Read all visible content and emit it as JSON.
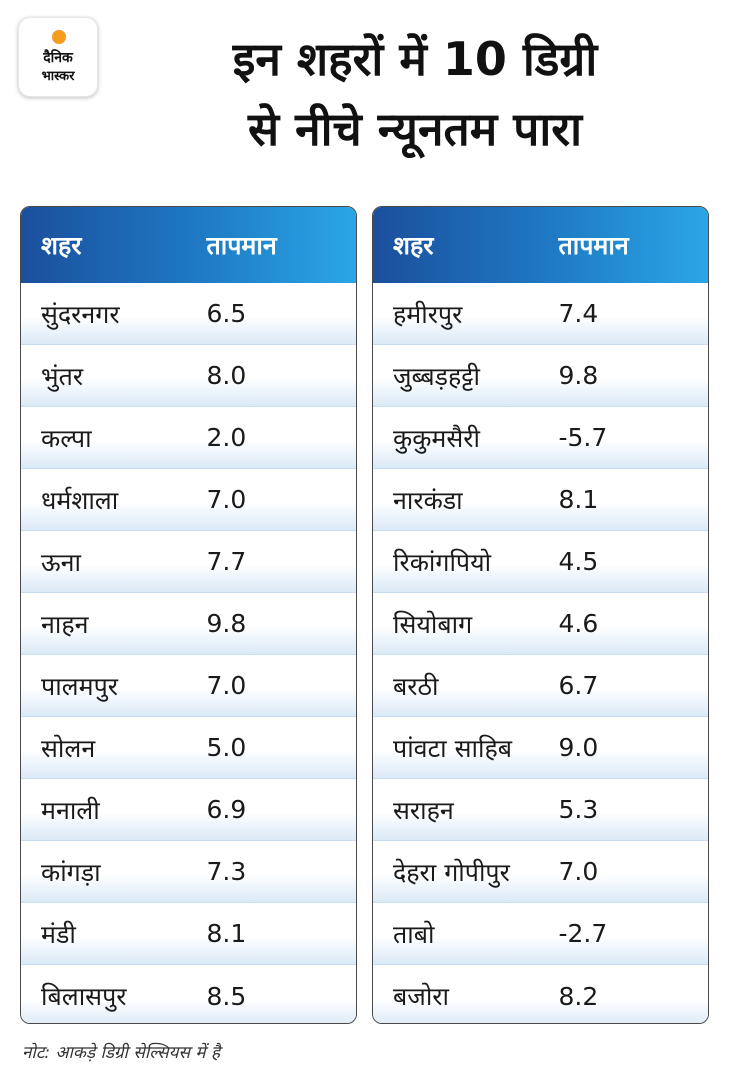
{
  "logo": {
    "line1": "दैनिक",
    "line2": "भास्कर"
  },
  "title": {
    "line1": "इन शहरों में 10 डिग्री",
    "line2": "से नीचे न्यूनतम पारा"
  },
  "colors": {
    "header_start": "#1b4f9c",
    "header_end": "#2aa6e6",
    "row_tint": "#dbe9f7",
    "logo_sun": "#f39c1e"
  },
  "tables": [
    {
      "headers": {
        "city": "शहर",
        "temp": "तापमान"
      },
      "rows": [
        {
          "city": "सुंदरनगर",
          "temp": "6.5"
        },
        {
          "city": "भुंतर",
          "temp": "8.0"
        },
        {
          "city": "कल्पा",
          "temp": "2.0"
        },
        {
          "city": "धर्मशाला",
          "temp": "7.0"
        },
        {
          "city": "ऊना",
          "temp": "7.7"
        },
        {
          "city": "नाहन",
          "temp": "9.8"
        },
        {
          "city": "पालमपुर",
          "temp": "7.0"
        },
        {
          "city": "सोलन",
          "temp": "5.0"
        },
        {
          "city": "मनाली",
          "temp": "6.9"
        },
        {
          "city": "कांगड़ा",
          "temp": "7.3"
        },
        {
          "city": "मंडी",
          "temp": "8.1"
        },
        {
          "city": "बिलासपुर",
          "temp": "8.5"
        }
      ]
    },
    {
      "headers": {
        "city": "शहर",
        "temp": "तापमान"
      },
      "rows": [
        {
          "city": "हमीरपुर",
          "temp": "7.4"
        },
        {
          "city": "जुब्बड़हट्टी",
          "temp": "9.8"
        },
        {
          "city": "कुकुमसैरी",
          "temp": "-5.7"
        },
        {
          "city": "नारकंडा",
          "temp": "8.1"
        },
        {
          "city": "रिकांगपियो",
          "temp": "4.5"
        },
        {
          "city": "सियोबाग",
          "temp": "4.6"
        },
        {
          "city": "बरठी",
          "temp": "6.7"
        },
        {
          "city": "पांवटा साहिब",
          "temp": "9.0"
        },
        {
          "city": "सराहन",
          "temp": "5.3"
        },
        {
          "city": "देहरा गोपीपुर",
          "temp": "7.0"
        },
        {
          "city": "ताबो",
          "temp": "-2.7"
        },
        {
          "city": "बजोरा",
          "temp": "8.2"
        }
      ]
    }
  ],
  "note": "नोट: आकड़े डिग्री सेल्सियस में है"
}
